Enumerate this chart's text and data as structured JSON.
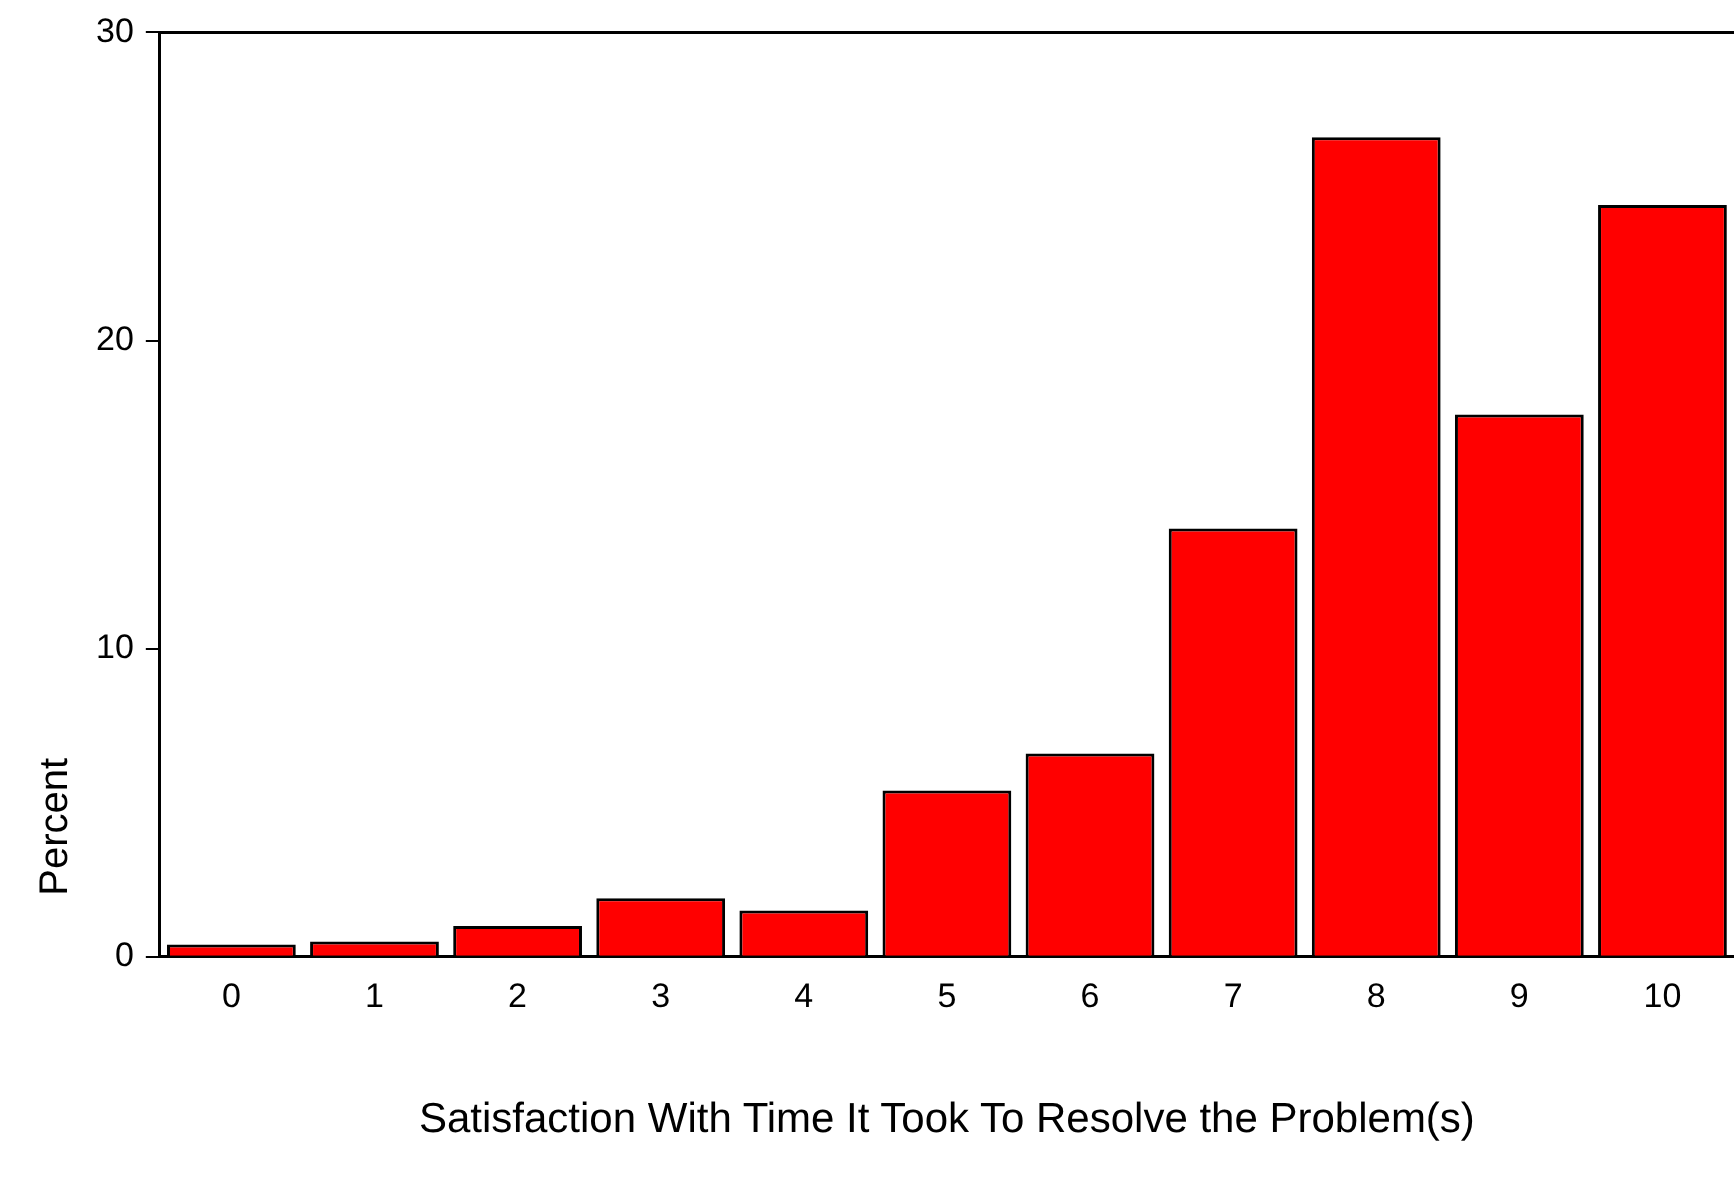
{
  "chart_data": {
    "type": "bar",
    "xlabel": "Satisfaction With Time It Took To Resolve the Problem(s)",
    "ylabel": "Percent",
    "categories": [
      "0",
      "1",
      "2",
      "3",
      "4",
      "5",
      "6",
      "7",
      "8",
      "9",
      "10"
    ],
    "values": [
      0.4,
      0.5,
      1.0,
      1.9,
      1.5,
      5.4,
      6.6,
      13.9,
      26.6,
      17.6,
      24.4
    ],
    "color": "#ff0000",
    "ylim": [
      0,
      30
    ],
    "yticks": [
      0,
      10,
      20,
      30
    ],
    "grid": false,
    "legend": false
  }
}
